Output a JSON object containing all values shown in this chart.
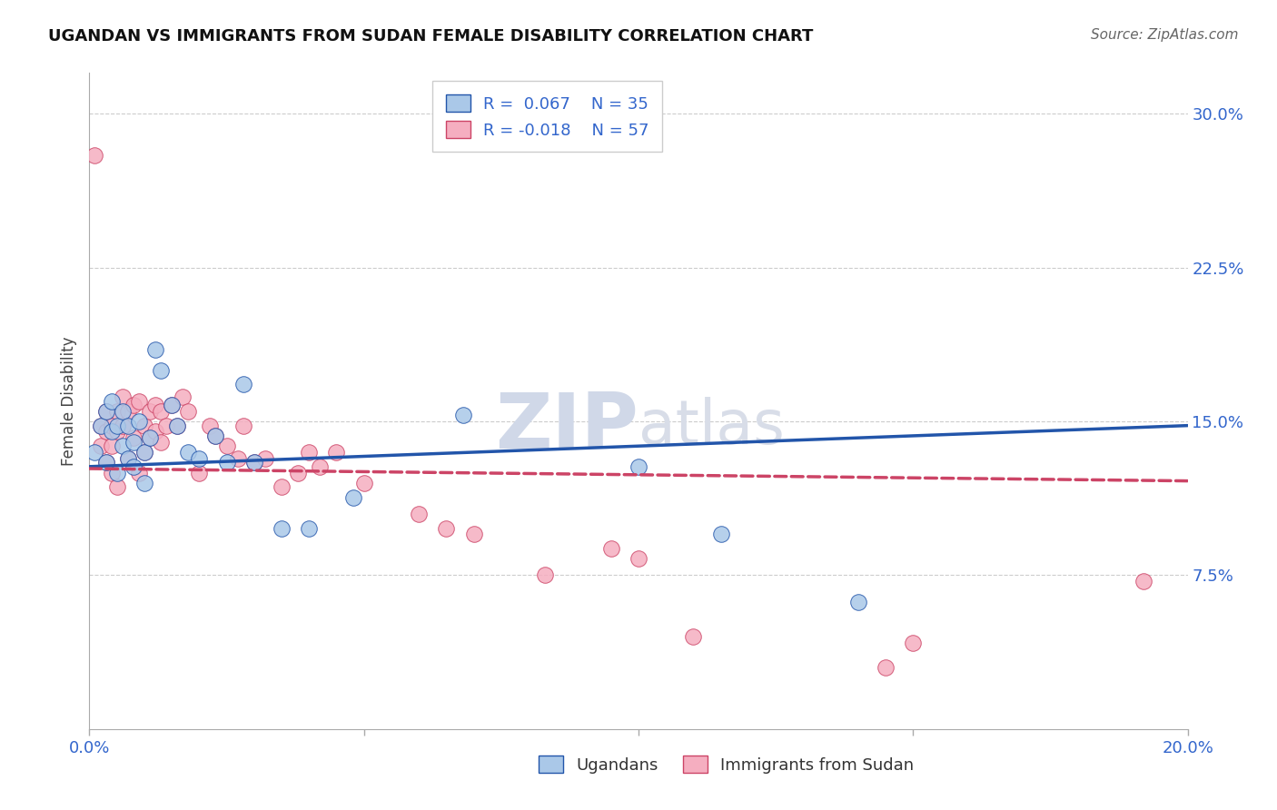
{
  "title": "UGANDAN VS IMMIGRANTS FROM SUDAN FEMALE DISABILITY CORRELATION CHART",
  "source": "Source: ZipAtlas.com",
  "ylabel": "Female Disability",
  "xlim": [
    0.0,
    0.2
  ],
  "ylim": [
    0.0,
    0.32
  ],
  "ugandan_R": 0.067,
  "ugandan_N": 35,
  "sudan_R": -0.018,
  "sudan_N": 57,
  "ugandan_color": "#aac8e8",
  "sudan_color": "#f5aec0",
  "trend_ugandan_color": "#2255aa",
  "trend_sudan_color": "#cc4466",
  "watermark_zip": "ZIP",
  "watermark_atlas": "atlas",
  "ugandan_x": [
    0.001,
    0.002,
    0.003,
    0.003,
    0.004,
    0.004,
    0.005,
    0.005,
    0.006,
    0.006,
    0.007,
    0.007,
    0.008,
    0.008,
    0.009,
    0.01,
    0.01,
    0.011,
    0.012,
    0.013,
    0.015,
    0.016,
    0.018,
    0.02,
    0.023,
    0.025,
    0.028,
    0.03,
    0.035,
    0.04,
    0.048,
    0.068,
    0.1,
    0.115,
    0.14
  ],
  "ugandan_y": [
    0.135,
    0.148,
    0.13,
    0.155,
    0.145,
    0.16,
    0.125,
    0.148,
    0.138,
    0.155,
    0.132,
    0.148,
    0.14,
    0.128,
    0.15,
    0.135,
    0.12,
    0.142,
    0.185,
    0.175,
    0.158,
    0.148,
    0.135,
    0.132,
    0.143,
    0.13,
    0.168,
    0.13,
    0.098,
    0.098,
    0.113,
    0.153,
    0.128,
    0.095,
    0.062
  ],
  "sudan_x": [
    0.001,
    0.002,
    0.002,
    0.003,
    0.003,
    0.003,
    0.004,
    0.004,
    0.004,
    0.005,
    0.005,
    0.005,
    0.006,
    0.006,
    0.007,
    0.007,
    0.008,
    0.008,
    0.009,
    0.009,
    0.01,
    0.01,
    0.011,
    0.011,
    0.012,
    0.012,
    0.013,
    0.013,
    0.014,
    0.015,
    0.016,
    0.017,
    0.018,
    0.02,
    0.022,
    0.023,
    0.025,
    0.027,
    0.028,
    0.03,
    0.032,
    0.035,
    0.038,
    0.04,
    0.042,
    0.045,
    0.05,
    0.06,
    0.065,
    0.07,
    0.083,
    0.095,
    0.1,
    0.11,
    0.145,
    0.15,
    0.192
  ],
  "sudan_y": [
    0.28,
    0.138,
    0.148,
    0.155,
    0.145,
    0.13,
    0.148,
    0.138,
    0.125,
    0.155,
    0.145,
    0.118,
    0.162,
    0.148,
    0.155,
    0.132,
    0.158,
    0.142,
    0.16,
    0.125,
    0.148,
    0.135,
    0.155,
    0.142,
    0.158,
    0.145,
    0.155,
    0.14,
    0.148,
    0.158,
    0.148,
    0.162,
    0.155,
    0.125,
    0.148,
    0.143,
    0.138,
    0.132,
    0.148,
    0.13,
    0.132,
    0.118,
    0.125,
    0.135,
    0.128,
    0.135,
    0.12,
    0.105,
    0.098,
    0.095,
    0.075,
    0.088,
    0.083,
    0.045,
    0.03,
    0.042,
    0.072
  ],
  "trend_ug_x0": 0.0,
  "trend_ug_y0": 0.128,
  "trend_ug_x1": 0.2,
  "trend_ug_y1": 0.148,
  "trend_su_x0": 0.0,
  "trend_su_y0": 0.127,
  "trend_su_x1": 0.2,
  "trend_su_y1": 0.121
}
